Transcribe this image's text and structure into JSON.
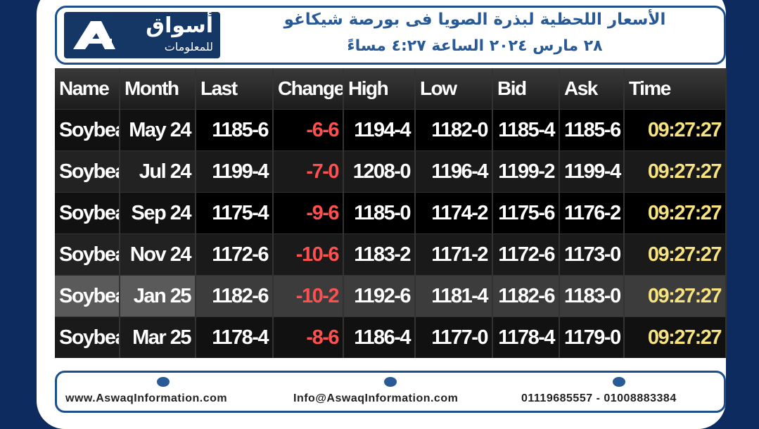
{
  "header": {
    "logo": {
      "name": "أسواق",
      "tagline": "للمعلومات"
    },
    "title": "الأسعار اللحظية لبذرة الصويا فى بورصة شيكاغو",
    "subtitle": "٢٨ مارس ٢٠٢٤ الساعة ٤:٢٧ مساءً"
  },
  "table": {
    "columns": [
      "Name",
      "Month",
      "Last",
      "Change",
      "High",
      "Low",
      "Bid",
      "Ask",
      "Time"
    ],
    "rows": [
      [
        "Soybean",
        "May 24",
        "1185-6",
        "-6-6",
        "1194-4",
        "1182-0",
        "1185-4",
        "1185-6",
        "09:27:27"
      ],
      [
        "Soybean",
        "Jul 24",
        "1199-4",
        "-7-0",
        "1208-0",
        "1196-4",
        "1199-2",
        "1199-4",
        "09:27:27"
      ],
      [
        "Soybean",
        "Sep 24",
        "1175-4",
        "-9-6",
        "1185-0",
        "1174-2",
        "1175-6",
        "1176-2",
        "09:27:27"
      ],
      [
        "Soybean",
        "Nov 24",
        "1172-6",
        "-10-6",
        "1183-2",
        "1171-2",
        "1172-6",
        "1173-0",
        "09:27:27"
      ],
      [
        "Soybean",
        "Jan 25",
        "1182-6",
        "-10-2",
        "1192-6",
        "1181-4",
        "1182-6",
        "1183-0",
        "09:27:27"
      ],
      [
        "Soybean",
        "Mar 25",
        "1178-4",
        "-8-6",
        "1186-4",
        "1177-0",
        "1178-4",
        "1179-0",
        "09:27:27"
      ]
    ]
  },
  "footer": {
    "website": "www.AswaqInformation.com",
    "email": "Info@AswaqInformation.com",
    "phones": "01119685557 - 01008883384"
  }
}
